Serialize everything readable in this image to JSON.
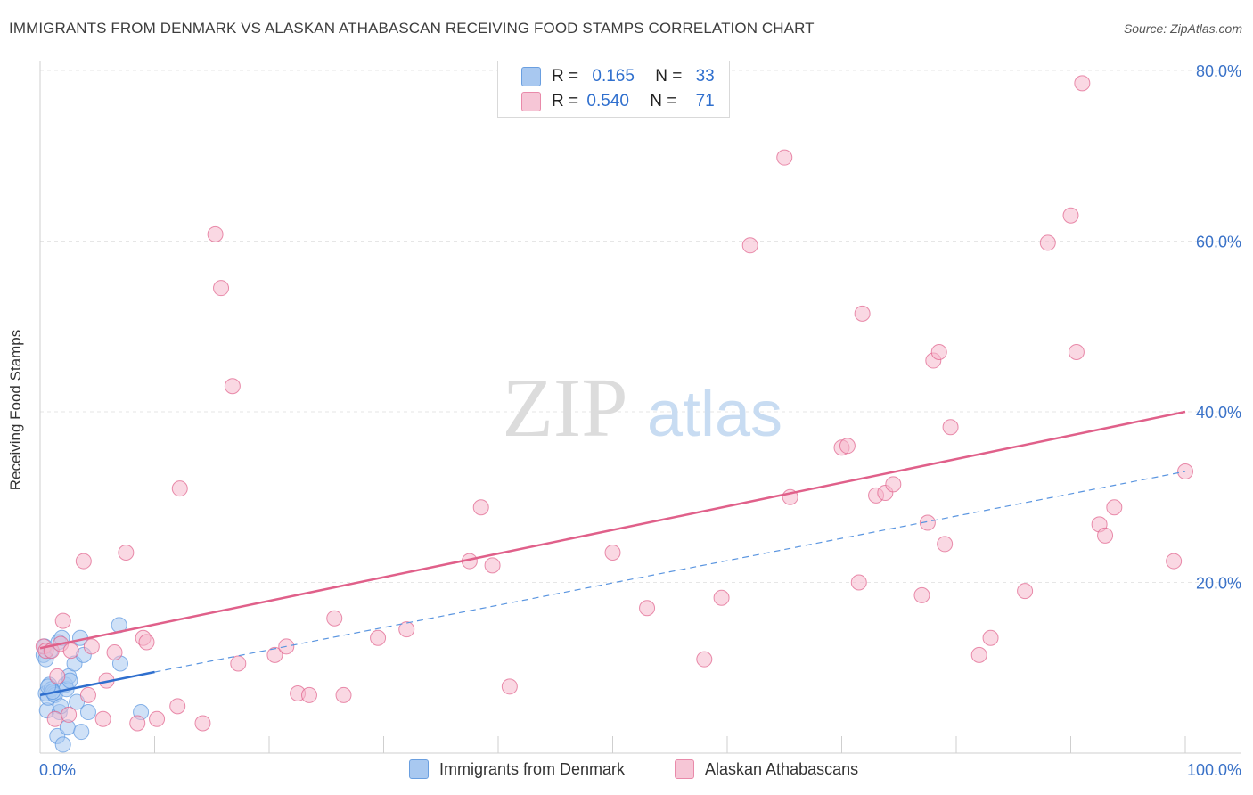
{
  "title": "IMMIGRANTS FROM DENMARK VS ALASKAN ATHABASCAN RECEIVING FOOD STAMPS CORRELATION CHART",
  "source": "Source: ZipAtlas.com",
  "watermark": {
    "zip": "ZIP",
    "atlas": "atlas"
  },
  "legend": {
    "rows": [
      {
        "r_label": "R =",
        "r_value": "0.165",
        "n_label": "N =",
        "n_value": "33",
        "color": "#a8c8f0"
      },
      {
        "r_label": "R =",
        "r_value": "0.540",
        "n_label": "N =",
        "n_value": "71",
        "color": "#f6b8cc"
      }
    ]
  },
  "bottom_legend": [
    {
      "label": "Immigrants from Denmark",
      "color": "#a8c8f0"
    },
    {
      "label": "Alaskan Athabascans",
      "color": "#f6b8cc"
    }
  ],
  "chart_data": {
    "type": "scatter",
    "title": "IMMIGRANTS FROM DENMARK VS ALASKAN ATHABASCAN RECEIVING FOOD STAMPS CORRELATION CHART",
    "xlabel": "",
    "ylabel": "Receiving Food Stamps",
    "xlim": [
      0,
      100
    ],
    "ylim": [
      0,
      80
    ],
    "x_tick_labels": [
      "0.0%",
      "100.0%"
    ],
    "y_ticks": [
      20,
      40,
      60,
      80
    ],
    "y_tick_labels": [
      "20.0%",
      "40.0%",
      "60.0%",
      "80.0%"
    ],
    "grid": true,
    "series": [
      {
        "name": "Immigrants from Denmark",
        "color": "#5a95e0",
        "fill": "#a8c8f0",
        "points": [
          [
            0.3,
            11.5
          ],
          [
            0.4,
            12.5
          ],
          [
            0.5,
            7
          ],
          [
            0.6,
            5
          ],
          [
            0.7,
            6.5
          ],
          [
            0.8,
            8
          ],
          [
            0.9,
            12
          ],
          [
            1.0,
            7.5
          ],
          [
            1.2,
            7
          ],
          [
            1.3,
            6.8
          ],
          [
            1.5,
            2
          ],
          [
            1.6,
            13
          ],
          [
            1.7,
            4.8
          ],
          [
            1.8,
            5.5
          ],
          [
            2.0,
            1
          ],
          [
            2.2,
            8
          ],
          [
            2.3,
            7.5
          ],
          [
            2.4,
            3
          ],
          [
            2.5,
            9
          ],
          [
            2.6,
            8.5
          ],
          [
            3.0,
            10.5
          ],
          [
            3.2,
            6
          ],
          [
            3.5,
            13.5
          ],
          [
            3.6,
            2.5
          ],
          [
            3.8,
            11.5
          ],
          [
            4.2,
            4.8
          ],
          [
            6.9,
            15
          ],
          [
            7.0,
            10.5
          ],
          [
            8.8,
            4.8
          ],
          [
            0.5,
            11
          ],
          [
            1.1,
            7.2
          ],
          [
            1.9,
            13.5
          ],
          [
            0.7,
            7.8
          ]
        ],
        "trend": {
          "x": [
            0,
            10
          ],
          "y": [
            6.8,
            9.5
          ]
        },
        "trend_extended": {
          "x": [
            10,
            100
          ],
          "y": [
            9.5,
            33
          ]
        }
      },
      {
        "name": "Alaskan Athabascans",
        "color": "#e0608a",
        "fill": "#f6b8cc",
        "points": [
          [
            0.3,
            12.5
          ],
          [
            0.5,
            12
          ],
          [
            1.0,
            12
          ],
          [
            1.3,
            4
          ],
          [
            1.5,
            9
          ],
          [
            1.8,
            12.8
          ],
          [
            2.0,
            15.5
          ],
          [
            2.5,
            4.5
          ],
          [
            2.7,
            12
          ],
          [
            3.8,
            22.5
          ],
          [
            4.2,
            6.8
          ],
          [
            4.5,
            12.5
          ],
          [
            5.5,
            4
          ],
          [
            5.8,
            8.5
          ],
          [
            6.5,
            11.8
          ],
          [
            7.5,
            23.5
          ],
          [
            8.5,
            3.5
          ],
          [
            9.0,
            13.5
          ],
          [
            9.3,
            13
          ],
          [
            10.2,
            4
          ],
          [
            12.0,
            5.5
          ],
          [
            12.2,
            31
          ],
          [
            14.2,
            3.5
          ],
          [
            15.3,
            60.8
          ],
          [
            15.8,
            54.5
          ],
          [
            16.8,
            43
          ],
          [
            17.3,
            10.5
          ],
          [
            20.5,
            11.5
          ],
          [
            21.5,
            12.5
          ],
          [
            22.5,
            7
          ],
          [
            23.5,
            6.8
          ],
          [
            25.7,
            15.8
          ],
          [
            26.5,
            6.8
          ],
          [
            29.5,
            13.5
          ],
          [
            32.0,
            14.5
          ],
          [
            37.5,
            22.5
          ],
          [
            38.5,
            28.8
          ],
          [
            39.5,
            22
          ],
          [
            41.0,
            7.8
          ],
          [
            50.0,
            23.5
          ],
          [
            53.0,
            17
          ],
          [
            58.0,
            11
          ],
          [
            59.5,
            18.2
          ],
          [
            62.0,
            59.5
          ],
          [
            65.0,
            69.8
          ],
          [
            65.5,
            30
          ],
          [
            70.0,
            35.8
          ],
          [
            70.5,
            36
          ],
          [
            71.5,
            20
          ],
          [
            71.8,
            51.5
          ],
          [
            73.0,
            30.2
          ],
          [
            73.8,
            30.5
          ],
          [
            74.5,
            31.5
          ],
          [
            77.0,
            18.5
          ],
          [
            77.5,
            27
          ],
          [
            78.0,
            46
          ],
          [
            78.5,
            47
          ],
          [
            79.0,
            24.5
          ],
          [
            79.5,
            38.2
          ],
          [
            82.0,
            11.5
          ],
          [
            83.0,
            13.5
          ],
          [
            86.0,
            19
          ],
          [
            88.0,
            59.8
          ],
          [
            90.0,
            63
          ],
          [
            90.5,
            47
          ],
          [
            91.0,
            78.5
          ],
          [
            92.5,
            26.8
          ],
          [
            93.0,
            25.5
          ],
          [
            93.8,
            28.8
          ],
          [
            99.0,
            22.5
          ],
          [
            100.0,
            33
          ]
        ],
        "trend": {
          "x": [
            0,
            100
          ],
          "y": [
            12.3,
            40
          ]
        }
      }
    ]
  }
}
